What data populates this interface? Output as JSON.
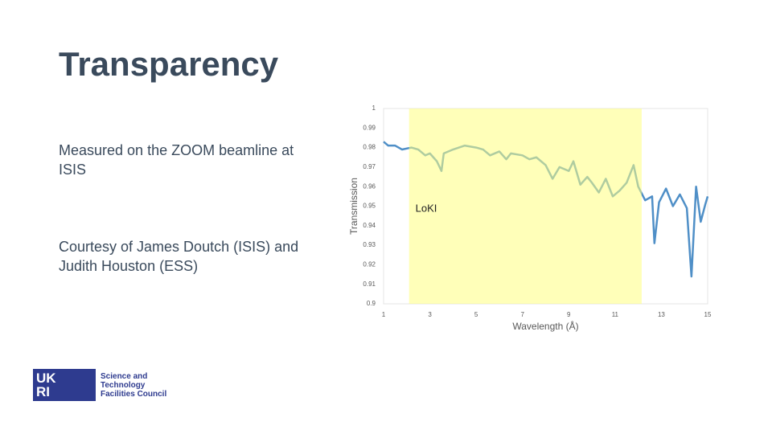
{
  "slide": {
    "title": "Transparency",
    "texts": [
      "Measured on the ZOOM beamline at ISIS",
      "Courtesy of James Doutch (ISIS) and Judith Houston (ESS)"
    ],
    "logo": {
      "mark": [
        "UK",
        "RI"
      ],
      "lines": [
        "Science and",
        "Technology",
        "Facilities Council"
      ]
    }
  },
  "chart_data": {
    "type": "line",
    "x_label": "Wavelength (Å)",
    "y_label": "Transmission",
    "x": [
      1.0,
      1.2,
      1.5,
      1.8,
      2.2,
      2.5,
      2.8,
      3.0,
      3.3,
      3.5,
      3.6,
      4.0,
      4.5,
      5.0,
      5.3,
      5.6,
      6.0,
      6.3,
      6.5,
      7.0,
      7.3,
      7.6,
      8.0,
      8.3,
      8.6,
      9.0,
      9.2,
      9.5,
      9.8,
      10.0,
      10.3,
      10.6,
      10.9,
      11.2,
      11.5,
      11.8,
      12.0,
      12.3,
      12.6,
      12.7,
      12.9,
      13.2,
      13.5,
      13.8,
      14.1,
      14.3,
      14.5,
      14.7,
      14.9,
      15.0
    ],
    "series": [
      {
        "name": "Transmission",
        "color": "#4f8fc7",
        "values": [
          0.983,
          0.981,
          0.981,
          0.979,
          0.98,
          0.979,
          0.976,
          0.977,
          0.973,
          0.968,
          0.977,
          0.979,
          0.981,
          0.98,
          0.979,
          0.976,
          0.978,
          0.974,
          0.977,
          0.976,
          0.974,
          0.975,
          0.971,
          0.964,
          0.97,
          0.968,
          0.973,
          0.961,
          0.965,
          0.962,
          0.957,
          0.964,
          0.955,
          0.958,
          0.962,
          0.971,
          0.96,
          0.953,
          0.955,
          0.931,
          0.952,
          0.959,
          0.95,
          0.956,
          0.949,
          0.914,
          0.96,
          0.942,
          0.951,
          0.955
        ]
      }
    ],
    "xlim": [
      1,
      15
    ],
    "xticks": [
      1,
      3,
      5,
      7,
      9,
      11,
      13,
      15
    ],
    "ylim": [
      0.9,
      1
    ],
    "yticks": [
      0.9,
      0.91,
      0.92,
      0.93,
      0.94,
      0.95,
      0.96,
      0.97,
      0.98,
      0.99,
      1
    ],
    "shaded_region": {
      "label": "LoKI",
      "x": [
        2.1,
        12.15
      ],
      "color": "#ffff80"
    }
  }
}
